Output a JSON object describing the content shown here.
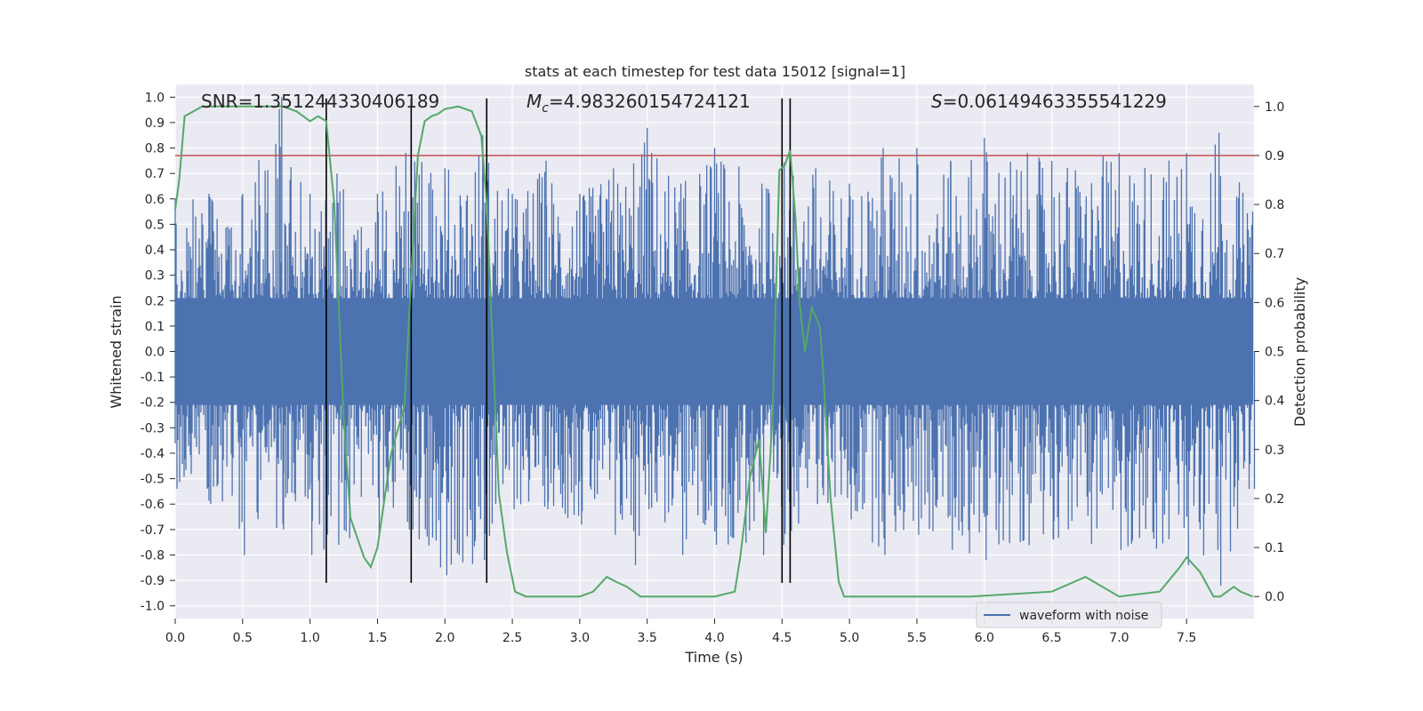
{
  "chart_data": {
    "type": "line",
    "title": "stats at each timestep for test data 15012 [signal=1]",
    "xlabel": "Time (s)",
    "ylabel_left": "Whitened strain",
    "ylabel_right": "Detection probability",
    "xlim": [
      0.0,
      8.0
    ],
    "ylim_left": [
      -1.05,
      1.05
    ],
    "ylim_right": [
      -0.045,
      1.045
    ],
    "x_ticks": [
      "0.0",
      "0.5",
      "1.0",
      "1.5",
      "2.0",
      "2.5",
      "3.0",
      "3.5",
      "4.0",
      "4.5",
      "5.0",
      "5.5",
      "6.0",
      "6.5",
      "7.0",
      "7.5"
    ],
    "y_ticks_left": [
      "-1.0",
      "-0.9",
      "-0.8",
      "-0.7",
      "-0.6",
      "-0.5",
      "-0.4",
      "-0.3",
      "-0.2",
      "-0.1",
      "0.0",
      "0.1",
      "0.2",
      "0.3",
      "0.4",
      "0.5",
      "0.6",
      "0.7",
      "0.8",
      "0.9",
      "1.0"
    ],
    "y_ticks_right": [
      "0.0",
      "0.1",
      "0.2",
      "0.3",
      "0.4",
      "0.5",
      "0.6",
      "0.7",
      "0.8",
      "0.9",
      "1.0"
    ],
    "grid": true,
    "legend": {
      "entries": [
        "waveform with noise"
      ],
      "placement": "lower-right"
    },
    "annotations": {
      "snr": {
        "label": "SNR",
        "value": "=1.351244330406189"
      },
      "mc": {
        "label": "M",
        "sub": "c",
        "value": "=4.983260154724121"
      },
      "s": {
        "label": "S",
        "value": "=0.06149463355541229"
      }
    },
    "threshold": {
      "axis": "right",
      "value": 0.9
    },
    "vlines_x": [
      1.12,
      1.75,
      2.31,
      4.5,
      4.56
    ],
    "series": [
      {
        "name": "waveform with noise",
        "axis": "left",
        "description_kind": "whitened strain noise, envelope samples",
        "x": [
          0.0,
          0.25,
          0.5,
          0.79,
          1.0,
          1.2,
          1.5,
          1.75,
          2.0,
          2.28,
          2.5,
          2.75,
          3.0,
          3.25,
          3.4,
          3.5,
          3.75,
          4.0,
          4.35,
          4.5,
          4.75,
          5.0,
          5.25,
          5.5,
          5.75,
          6.0,
          6.5,
          7.0,
          7.5,
          7.74,
          7.99
        ],
        "y_max": [
          0.6,
          0.62,
          0.62,
          1.0,
          0.62,
          0.7,
          0.62,
          0.82,
          0.72,
          0.85,
          0.62,
          0.75,
          0.62,
          0.72,
          0.74,
          0.88,
          0.66,
          0.8,
          0.66,
          0.78,
          0.72,
          0.66,
          0.8,
          0.8,
          0.75,
          0.84,
          0.75,
          0.78,
          0.78,
          0.86,
          0.55
        ],
        "y_min": [
          -0.54,
          -0.6,
          -0.8,
          -0.7,
          -0.8,
          -0.76,
          -0.72,
          -0.7,
          -0.88,
          -0.82,
          -0.62,
          -0.62,
          -0.68,
          -0.72,
          -0.84,
          -0.62,
          -0.8,
          -0.76,
          -0.8,
          -0.76,
          -0.6,
          -0.66,
          -0.8,
          -0.72,
          -0.78,
          -0.82,
          -0.74,
          -0.78,
          -0.84,
          -0.92,
          -0.54
        ]
      },
      {
        "name": "",
        "axis": "right",
        "x": [
          0.0,
          0.03,
          0.07,
          0.2,
          0.4,
          0.6,
          0.8,
          0.9,
          1.0,
          1.06,
          1.12,
          1.18,
          1.25,
          1.3,
          1.4,
          1.45,
          1.5,
          1.6,
          1.7,
          1.75,
          1.8,
          1.85,
          1.9,
          1.95,
          2.0,
          2.1,
          2.2,
          2.27,
          2.31,
          2.4,
          2.46,
          2.52,
          2.6,
          2.8,
          3.0,
          3.1,
          3.2,
          3.27,
          3.35,
          3.45,
          3.6,
          3.8,
          4.0,
          4.15,
          4.19,
          4.26,
          4.33,
          4.38,
          4.43,
          4.48,
          4.52,
          4.56,
          4.6,
          4.63,
          4.67,
          4.72,
          4.78,
          4.8,
          4.86,
          4.92,
          4.96,
          5.1,
          5.5,
          5.9,
          6.5,
          6.75,
          7.0,
          7.3,
          7.45,
          7.5,
          7.6,
          7.7,
          7.75,
          7.8,
          7.85,
          7.9,
          7.99
        ],
        "y": [
          0.79,
          0.85,
          0.98,
          1.0,
          1.0,
          1.0,
          1.0,
          0.99,
          0.97,
          0.98,
          0.97,
          0.8,
          0.36,
          0.16,
          0.08,
          0.06,
          0.1,
          0.29,
          0.39,
          0.65,
          0.9,
          0.97,
          0.98,
          0.985,
          0.995,
          1.0,
          0.99,
          0.94,
          0.8,
          0.21,
          0.09,
          0.01,
          0.0,
          0.0,
          0.0,
          0.01,
          0.04,
          0.03,
          0.02,
          0.0,
          0.0,
          0.0,
          0.0,
          0.01,
          0.08,
          0.24,
          0.32,
          0.13,
          0.37,
          0.87,
          0.88,
          0.91,
          0.77,
          0.6,
          0.5,
          0.59,
          0.55,
          0.48,
          0.2,
          0.03,
          0.0,
          0.0,
          0.0,
          0.0,
          0.01,
          0.04,
          0.0,
          0.01,
          0.06,
          0.08,
          0.05,
          0.0,
          0.0,
          0.01,
          0.02,
          0.01,
          0.0
        ]
      }
    ]
  }
}
